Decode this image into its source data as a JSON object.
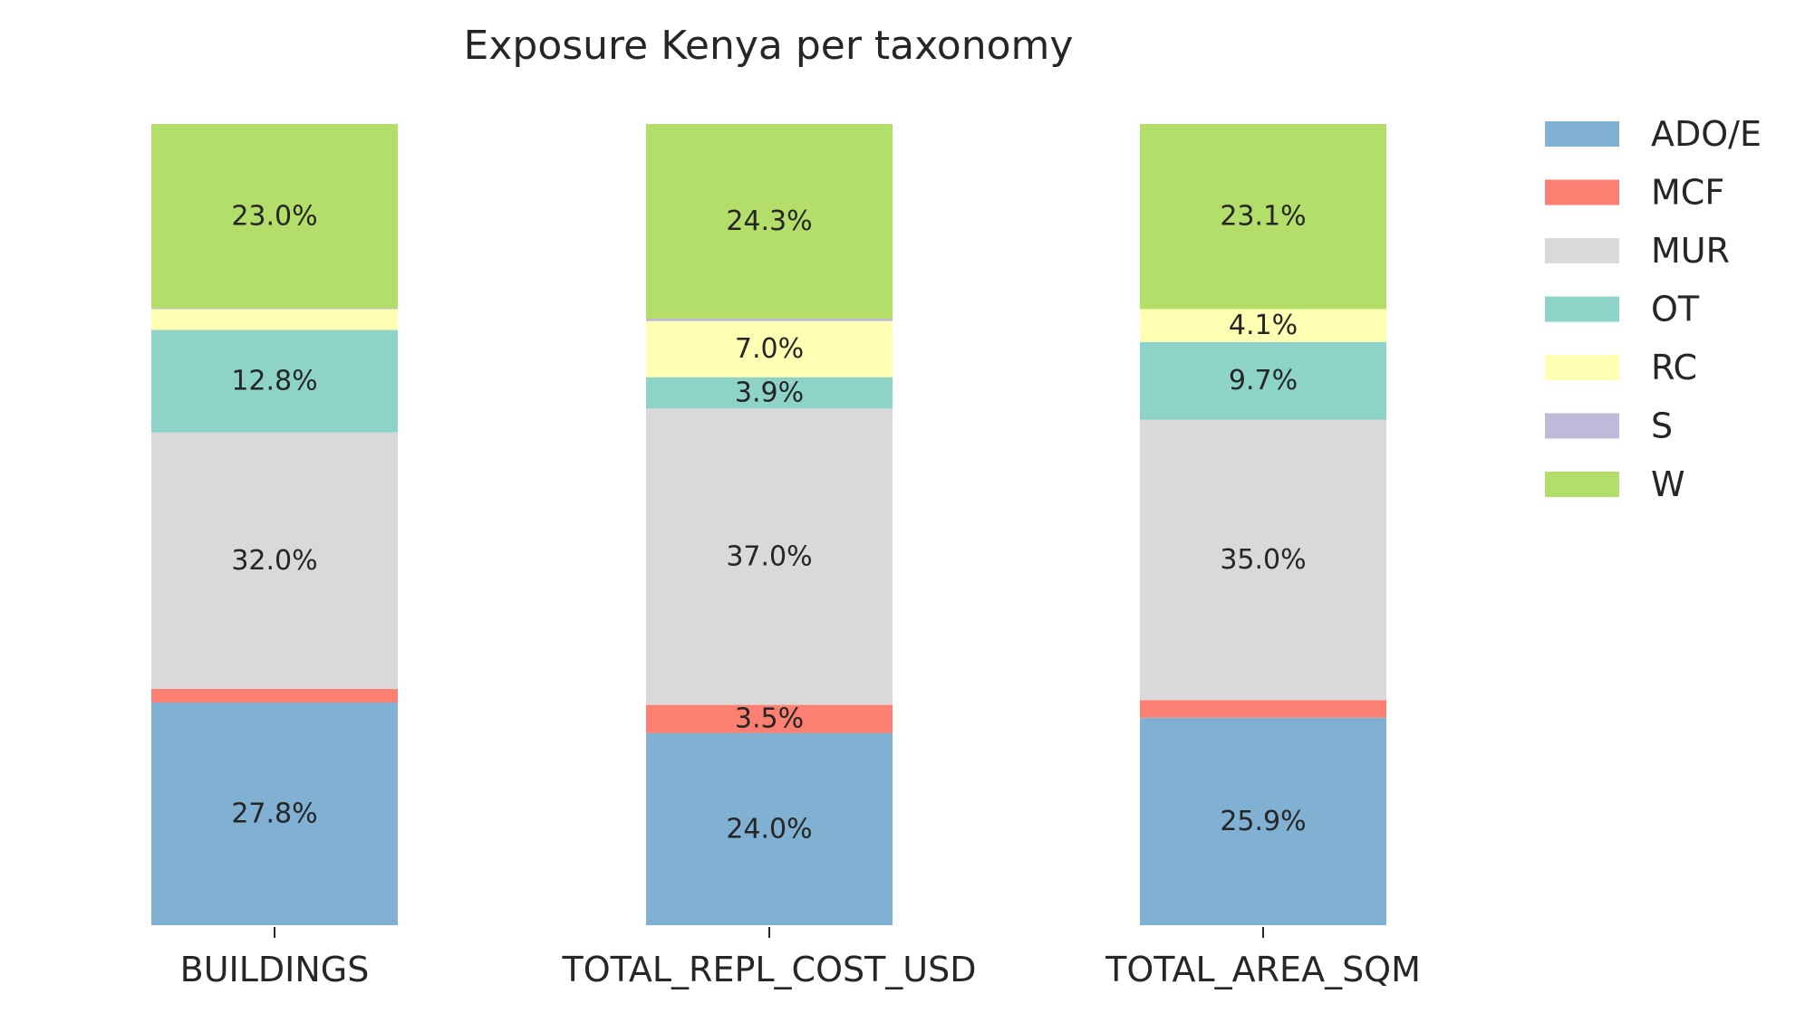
{
  "chart_data": {
    "type": "bar",
    "stacked": true,
    "normalized_percent": true,
    "title": "Exposure Kenya per taxonomy",
    "xlabel": "",
    "ylabel": "",
    "ylim": [
      0,
      100
    ],
    "categories": [
      "BUILDINGS",
      "TOTAL_REPL_COST_USD",
      "TOTAL_AREA_SQM"
    ],
    "series": [
      {
        "name": "ADO/E",
        "color": "#80b1d3",
        "values": [
          27.8,
          24.0,
          25.9
        ],
        "labels": [
          "27.8%",
          "24.0%",
          "25.9%"
        ]
      },
      {
        "name": "MCF",
        "color": "#fb8072",
        "values": [
          1.7,
          3.5,
          2.2
        ],
        "labels": [
          "",
          "3.5%",
          ""
        ]
      },
      {
        "name": "MUR",
        "color": "#d9d9d9",
        "values": [
          32.0,
          37.0,
          35.0
        ],
        "labels": [
          "32.0%",
          "37.0%",
          "35.0%"
        ]
      },
      {
        "name": "OT",
        "color": "#8dd3c7",
        "values": [
          12.8,
          3.9,
          9.7
        ],
        "labels": [
          "12.8%",
          "3.9%",
          "9.7%"
        ]
      },
      {
        "name": "RC",
        "color": "#ffffb3",
        "values": [
          2.6,
          7.0,
          4.1
        ],
        "labels": [
          "",
          "7.0%",
          "4.1%"
        ]
      },
      {
        "name": "S",
        "color": "#bebada",
        "values": [
          0.1,
          0.3,
          0.0
        ],
        "labels": [
          "",
          "",
          ""
        ]
      },
      {
        "name": "W",
        "color": "#b3de69",
        "values": [
          23.0,
          24.3,
          23.1
        ],
        "labels": [
          "23.0%",
          "24.3%",
          "23.1%"
        ]
      }
    ],
    "grid": false,
    "legend_position": "right"
  }
}
